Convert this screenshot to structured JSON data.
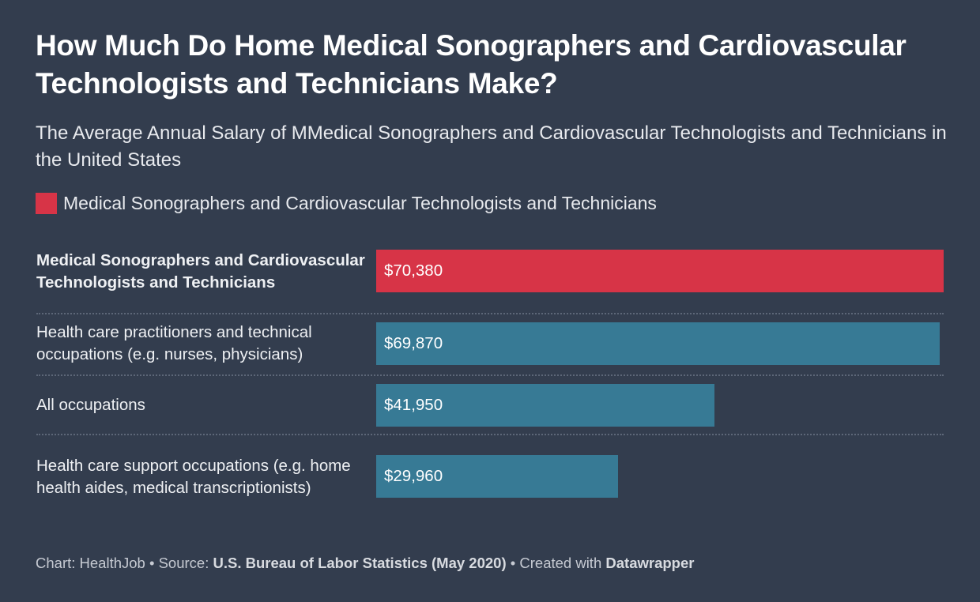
{
  "title": "How Much Do Home Medical Sonographers and Cardiovascular Technologists and Technicians Make?",
  "subtitle": "The Average Annual Salary of MMedical Sonographers and Cardiovascular Technologists and Technicians in the United States",
  "legend": {
    "label": "Medical Sonographers and Cardiovascular Technologists and Technicians",
    "color": "#d73447"
  },
  "footer": {
    "chart_prefix": "Chart: HealthJob • Source: ",
    "source": "U.S. Bureau of Labor Statistics (May 2020)",
    "created_prefix": " • Created with ",
    "tool": "Datawrapper"
  },
  "chart_data": {
    "type": "bar",
    "orientation": "horizontal",
    "categories": [
      "Medical Sonographers and Cardiovascular Technologists and Technicians",
      "Health care practitioners and technical occupations (e.g. nurses, physicians)",
      "All occupations",
      "Health care support occupations (e.g. home health aides, medical transcriptionists)"
    ],
    "values": [
      70380,
      69870,
      41950,
      29960
    ],
    "value_labels": [
      "$70,380",
      "$69,870",
      "$41,950",
      "$29,960"
    ],
    "highlight_index": 0,
    "colors": {
      "highlight": "#d73447",
      "default": "#377a95"
    },
    "xlim": [
      0,
      70380
    ],
    "grid": false
  }
}
